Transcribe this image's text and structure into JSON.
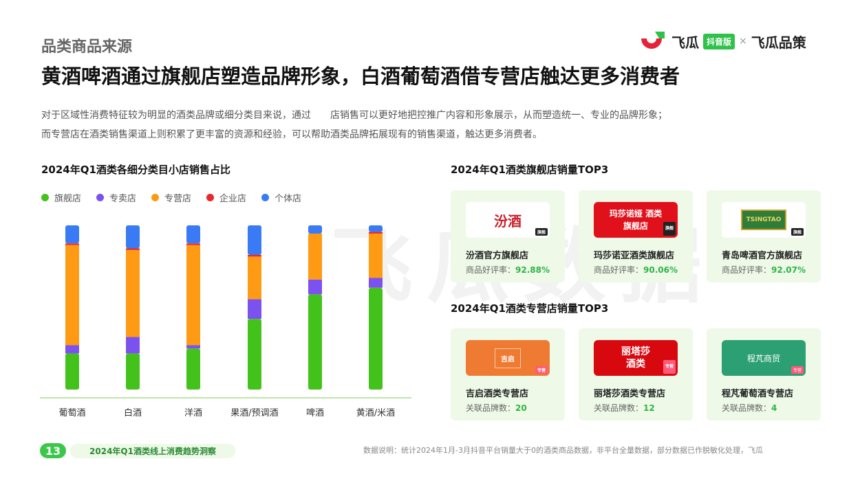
{
  "header": {
    "section_label": "品类商品来源",
    "brand_left": "飞瓜",
    "brand_badge": "抖音版",
    "brand_x": "×",
    "brand_right": "飞瓜品策",
    "headline": "黄酒啤酒通过旗舰店塑造品牌形象，白酒葡萄酒借专营店触达更多消费者",
    "desc_line1": "对于区域性消费特征较为明显的酒类品牌或细分类目来说，通过　　店销售可以更好地把控推广内容和形象展示，从而塑造统一、专业的品牌形象；",
    "desc_line2": "而专营店在酒类销售渠道上则积累了更丰富的资源和经验，可以帮助酒类品牌拓展现有的销售渠道，触达更多消费者。"
  },
  "watermark": "飞瓜数据",
  "left_chart_title": "2024年Q1酒类各细分类目小店销售占比",
  "legend": [
    {
      "label": "旗舰店",
      "color": "#44c21c"
    },
    {
      "label": "专卖店",
      "color": "#7b52f0"
    },
    {
      "label": "专营店",
      "color": "#ff9a14"
    },
    {
      "label": "企业店",
      "color": "#e8282b"
    },
    {
      "label": "个体店",
      "color": "#3a7bf5"
    }
  ],
  "chart_data": {
    "type": "bar",
    "stacked": true,
    "percent": true,
    "categories": [
      "葡萄酒",
      "白酒",
      "洋酒",
      "果酒/预调酒",
      "啤酒",
      "黄酒/米酒"
    ],
    "series": [
      {
        "name": "旗舰店",
        "color": "#44c21c",
        "values": [
          22,
          22,
          25,
          43,
          58,
          62
        ]
      },
      {
        "name": "专卖店",
        "color": "#7b52f0",
        "values": [
          5,
          10,
          2,
          12,
          9,
          6
        ]
      },
      {
        "name": "专营店",
        "color": "#ff9a14",
        "values": [
          61,
          53,
          61,
          26,
          28,
          27
        ]
      },
      {
        "name": "企业店",
        "color": "#e8282b",
        "values": [
          1,
          1,
          1,
          1,
          0,
          1
        ]
      },
      {
        "name": "个体店",
        "color": "#3a7bf5",
        "values": [
          11,
          14,
          11,
          18,
          5,
          4
        ]
      }
    ],
    "ylim": [
      0,
      100
    ]
  },
  "flagship_title": "2024年Q1酒类旗舰店销量TOP3",
  "flagship_cards": [
    {
      "logo": "汾酒",
      "tag": "旗舰",
      "name": "汾酒官方旗舰店",
      "metric_label": "商品好评率：",
      "metric_value": "92.88%"
    },
    {
      "logo": "玛莎诺娅 酒类旗舰店",
      "tag": "旗舰",
      "name": "玛莎诺亚酒类旗舰店",
      "metric_label": "商品好评率：",
      "metric_value": "90.06%"
    },
    {
      "logo": "TSINGTAO",
      "tag": "旗舰",
      "name": "青岛啤酒官方旗舰店",
      "metric_label": "商品好评率：",
      "metric_value": "92.07%"
    }
  ],
  "specialty_title": "2024年Q1酒类专营店销量TOP3",
  "specialty_cards": [
    {
      "logo": "吉启",
      "tag": "专营",
      "name": "吉启酒类专营店",
      "metric_label": "关联品牌数：",
      "metric_value": "20"
    },
    {
      "logo": "丽塔莎 酒类",
      "tag": "专营",
      "name": "丽塔莎酒类专营店",
      "metric_label": "关联品牌数：",
      "metric_value": "12"
    },
    {
      "logo": "程芃商贸",
      "tag": "专营",
      "name": "程芃葡萄酒专营店",
      "metric_label": "关联品牌数：",
      "metric_value": "4"
    }
  ],
  "footer": {
    "page_number": "13",
    "report_title": "2024年Q1酒类线上消费趋势洞察",
    "note": "数据说明：统计2024年1月-3月抖音平台销量大于0的酒类商品数据，非平台全量数据，部分数据已作脱敏化处理，飞瓜"
  }
}
